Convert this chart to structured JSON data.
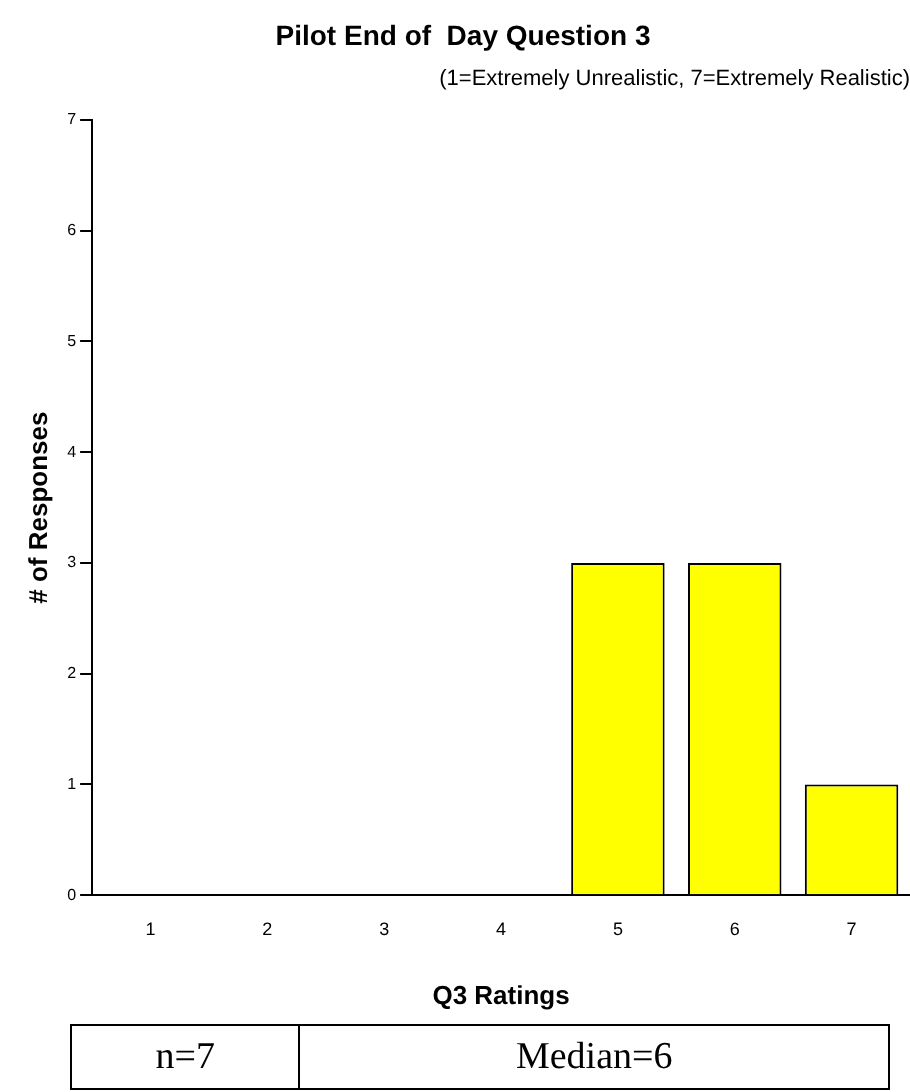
{
  "chart_data": {
    "type": "bar",
    "title": "Pilot End of  Day Question 3",
    "subtitle": "(1=Extremely Unrealistic, 7=Extremely Realistic)",
    "xlabel": "Q3 Ratings",
    "ylabel": "# of Responses",
    "categories": [
      "1",
      "2",
      "3",
      "4",
      "5",
      "6",
      "7"
    ],
    "values": [
      0,
      0,
      0,
      0,
      3,
      3,
      1
    ],
    "color": "#ffff00",
    "ylim": [
      0,
      7
    ],
    "yticks": [
      0,
      1,
      2,
      3,
      4,
      5,
      6,
      7
    ],
    "grid": false,
    "legend": false,
    "annotations": [
      "n=7",
      "Median=6"
    ]
  }
}
